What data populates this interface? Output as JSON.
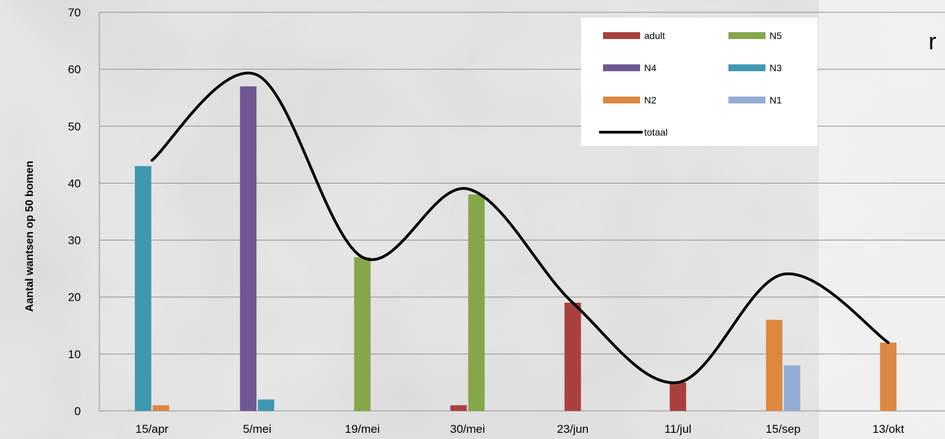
{
  "chart_data": {
    "type": "bar",
    "title": "",
    "partial_title": "r",
    "ylabel": "Aantal wantsen op 50 bomen",
    "xlabel": "",
    "ylim": [
      0,
      70
    ],
    "yticks": [
      0,
      10,
      20,
      30,
      40,
      50,
      60,
      70
    ],
    "grid": true,
    "legend_position": "top-right",
    "categories": [
      "15/apr",
      "5/mei",
      "19/mei",
      "30/mei",
      "23/jun",
      "11/jul",
      "15/sep",
      "13/okt"
    ],
    "series": [
      {
        "name": "adult",
        "color": "#a8403f",
        "values": [
          0,
          0,
          0,
          1,
          19,
          5,
          0,
          0
        ]
      },
      {
        "name": "N5",
        "color": "#86a64a",
        "values": [
          0,
          0,
          27,
          38,
          0,
          0,
          0,
          0
        ]
      },
      {
        "name": "N4",
        "color": "#6f5793",
        "values": [
          0,
          57,
          0,
          0,
          0,
          0,
          0,
          0
        ]
      },
      {
        "name": "N3",
        "color": "#3e98b0",
        "values": [
          43,
          2,
          0,
          0,
          0,
          0,
          0,
          0
        ]
      },
      {
        "name": "N2",
        "color": "#dd8740",
        "values": [
          1,
          0,
          0,
          0,
          0,
          0,
          16,
          12
        ]
      },
      {
        "name": "N1",
        "color": "#94abd3",
        "values": [
          0,
          0,
          0,
          0,
          0,
          0,
          8,
          0
        ]
      }
    ],
    "line_series": {
      "name": "totaal",
      "color": "#000000",
      "values": [
        44,
        59,
        27,
        39,
        19,
        5,
        24,
        12
      ]
    }
  }
}
